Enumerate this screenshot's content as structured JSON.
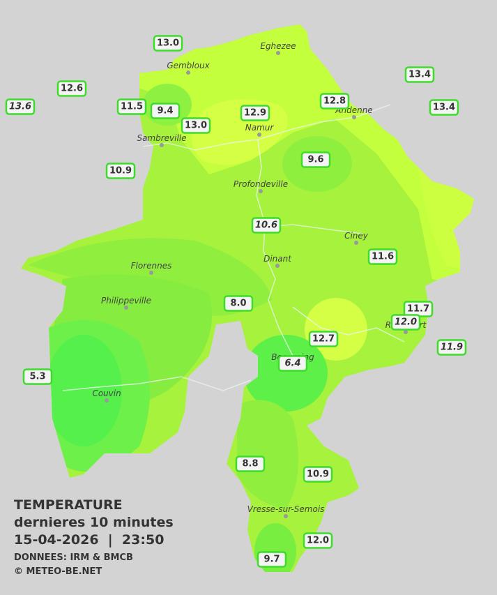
{
  "legend": {
    "title": "TEMPERATURE",
    "subtitle": "dernieres 10 minutes",
    "timestamp": "15-04-2026  |  23:50",
    "source": "DONNEES: IRM & BMCB",
    "copyright": "© METEO-BE.NET"
  },
  "cities": [
    "Eghezee",
    "Gembloux",
    "Andenne",
    "Namur",
    "Sambreville",
    "Profondeville",
    "Ciney",
    "Dinant",
    "Florennes",
    "Philippeville",
    "Rochefort",
    "Beauraing",
    "Couvin",
    "Vresse-sur-Semois"
  ],
  "stations": [
    {
      "label": "13.0",
      "italic": false
    },
    {
      "label": "12.6",
      "italic": false
    },
    {
      "label": "13.6",
      "italic": true
    },
    {
      "label": "11.5",
      "italic": false
    },
    {
      "label": "9.4",
      "italic": false
    },
    {
      "label": "13.0",
      "italic": false
    },
    {
      "label": "12.9",
      "italic": false
    },
    {
      "label": "12.8",
      "italic": false
    },
    {
      "label": "13.4",
      "italic": false
    },
    {
      "label": "13.4",
      "italic": false
    },
    {
      "label": "10.9",
      "italic": false
    },
    {
      "label": "9.6",
      "italic": false
    },
    {
      "label": "10.6",
      "italic": true
    },
    {
      "label": "11.6",
      "italic": false
    },
    {
      "label": "8.0",
      "italic": false
    },
    {
      "label": "11.7",
      "italic": false
    },
    {
      "label": "12.0",
      "italic": true
    },
    {
      "label": "11.9",
      "italic": true
    },
    {
      "label": "12.7",
      "italic": false
    },
    {
      "label": "6.4",
      "italic": true
    },
    {
      "label": "5.3",
      "italic": false
    },
    {
      "label": "8.8",
      "italic": false
    },
    {
      "label": "10.9",
      "italic": false
    },
    {
      "label": "12.0",
      "italic": false
    },
    {
      "label": "9.7",
      "italic": false
    }
  ]
}
